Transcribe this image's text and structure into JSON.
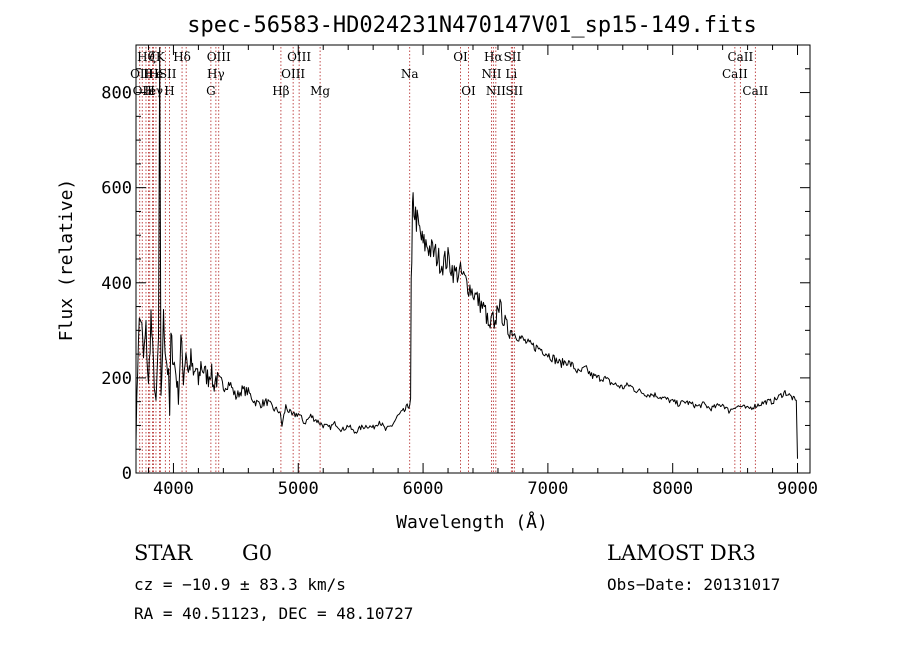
{
  "chart_data": {
    "type": "line",
    "title": "spec-56583-HD024231N470147V01_sp15-149.fits",
    "xlabel": "Wavelength (Å)",
    "ylabel": "Flux (relative)",
    "xlim": [
      3700,
      9100
    ],
    "ylim": [
      0,
      900
    ],
    "xticks": [
      "4000",
      "5000",
      "6000",
      "7000",
      "8000",
      "9000"
    ],
    "yticks": [
      "0",
      "200",
      "400",
      "600",
      "800"
    ],
    "grid": false,
    "series": [
      {
        "x": [
          3700,
          3720,
          3740,
          3760,
          3780,
          3800,
          3820,
          3840,
          3860,
          3880,
          3890,
          3900,
          3920,
          3940,
          3960,
          3970,
          3980,
          4000,
          4020,
          4040,
          4060,
          4080,
          4100,
          4120,
          4140,
          4160,
          4180,
          4200,
          4220,
          4250,
          4280,
          4300,
          4320,
          4340,
          4360,
          4400,
          4450,
          4500,
          4550,
          4600,
          4650,
          4700,
          4750,
          4800,
          4850,
          4870,
          4900,
          4950,
          5000,
          5050,
          5100,
          5150,
          5200,
          5250,
          5300,
          5350,
          5400,
          5450,
          5500,
          5550,
          5600,
          5650,
          5700,
          5750,
          5800,
          5850,
          5880,
          5900,
          5905,
          5910,
          5915,
          5920,
          5940,
          5960,
          5980,
          6000,
          6030,
          6060,
          6100,
          6150,
          6200,
          6250,
          6300,
          6350,
          6400,
          6450,
          6500,
          6530,
          6560,
          6570,
          6600,
          6650,
          6680,
          6700,
          6750,
          6800,
          6850,
          6900,
          6950,
          7000,
          7050,
          7100,
          7150,
          7200,
          7250,
          7300,
          7350,
          7400,
          7450,
          7500,
          7550,
          7600,
          7650,
          7700,
          7750,
          7800,
          7850,
          7900,
          7950,
          8000,
          8050,
          8100,
          8150,
          8200,
          8250,
          8300,
          8350,
          8400,
          8450,
          8500,
          8550,
          8600,
          8650,
          8700,
          8750,
          8800,
          8850,
          8900,
          8950,
          8990,
          9000
        ],
        "y": [
          70,
          300,
          330,
          240,
          300,
          180,
          330,
          220,
          140,
          280,
          820,
          150,
          320,
          250,
          200,
          120,
          280,
          240,
          210,
          160,
          280,
          200,
          260,
          210,
          240,
          200,
          220,
          190,
          230,
          210,
          200,
          220,
          180,
          200,
          190,
          180,
          190,
          160,
          175,
          170,
          150,
          145,
          150,
          135,
          130,
          100,
          140,
          120,
          125,
          105,
          120,
          110,
          100,
          95,
          105,
          90,
          100,
          85,
          95,
          100,
          95,
          110,
          90,
          100,
          120,
          130,
          140,
          150,
          400,
          430,
          540,
          570,
          540,
          520,
          500,
          480,
          480,
          470,
          460,
          440,
          450,
          420,
          420,
          400,
          380,
          360,
          340,
          300,
          330,
          290,
          360,
          320,
          300,
          300,
          290,
          280,
          270,
          265,
          260,
          250,
          240,
          230,
          235,
          225,
          210,
          220,
          205,
          200,
          200,
          190,
          185,
          180,
          185,
          175,
          170,
          165,
          165,
          160,
          155,
          150,
          145,
          150,
          145,
          140,
          145,
          135,
          140,
          145,
          130,
          140,
          140,
          135,
          140,
          145,
          150,
          150,
          160,
          170,
          160,
          150,
          30
        ]
      }
    ],
    "lines": [
      {
        "x": 3730,
        "label": "OII",
        "row": 1
      },
      {
        "x": 3750,
        "label": "OII",
        "row": 2
      },
      {
        "x": 3780,
        "label": "Hθ",
        "row": 0
      },
      {
        "x": 3800,
        "label": "H",
        "row": 1
      },
      {
        "x": 3810,
        "label": "H",
        "row": 2
      },
      {
        "x": 3833,
        "label": "ζ",
        "row": 0
      },
      {
        "x": 3840,
        "label": "H",
        "row": 1
      },
      {
        "x": 3860,
        "label": "eγ",
        "row": 2
      },
      {
        "x": 3889,
        "label": "e",
        "row": 1
      },
      {
        "x": 3895,
        "label": "K",
        "row": 0
      },
      {
        "x": 3935,
        "label": "ISII",
        "row": 1
      },
      {
        "x": 3968,
        "label": "H",
        "row": 2
      },
      {
        "x": 4069,
        "label": "Hδ",
        "row": 0
      },
      {
        "x": 4102,
        "label": "",
        "row": 0
      },
      {
        "x": 4300,
        "label": "G",
        "row": 2
      },
      {
        "x": 4340,
        "label": "Hγ",
        "row": 1
      },
      {
        "x": 4363,
        "label": "OIII",
        "row": 0
      },
      {
        "x": 4861,
        "label": "Hβ",
        "row": 2
      },
      {
        "x": 4959,
        "label": "OIII",
        "row": 1
      },
      {
        "x": 5007,
        "label": "OIII",
        "row": 0
      },
      {
        "x": 5175,
        "label": "Mg",
        "row": 2
      },
      {
        "x": 5893,
        "label": "Na",
        "row": 1
      },
      {
        "x": 6300,
        "label": "OI",
        "row": 0
      },
      {
        "x": 6364,
        "label": "OI",
        "row": 2
      },
      {
        "x": 6548,
        "label": "NII",
        "row": 1
      },
      {
        "x": 6563,
        "label": "Hα",
        "row": 0
      },
      {
        "x": 6583,
        "label": "NII",
        "row": 2
      },
      {
        "x": 6707,
        "label": "Li",
        "row": 1
      },
      {
        "x": 6716,
        "label": "SII",
        "row": 0
      },
      {
        "x": 6731,
        "label": "SII",
        "row": 2
      },
      {
        "x": 8498,
        "label": "CaII",
        "row": 1
      },
      {
        "x": 8542,
        "label": "CaII",
        "row": 0
      },
      {
        "x": 8662,
        "label": "CaII",
        "row": 2
      }
    ]
  },
  "info": {
    "object_class": "STAR",
    "subclass": "G0",
    "survey": "LAMOST DR3",
    "cz": "cz = −10.9 ± 83.3 km/s",
    "obs_date": "Obs−Date: 20131017",
    "coords": "RA =  40.51123, DEC =  48.10727"
  }
}
